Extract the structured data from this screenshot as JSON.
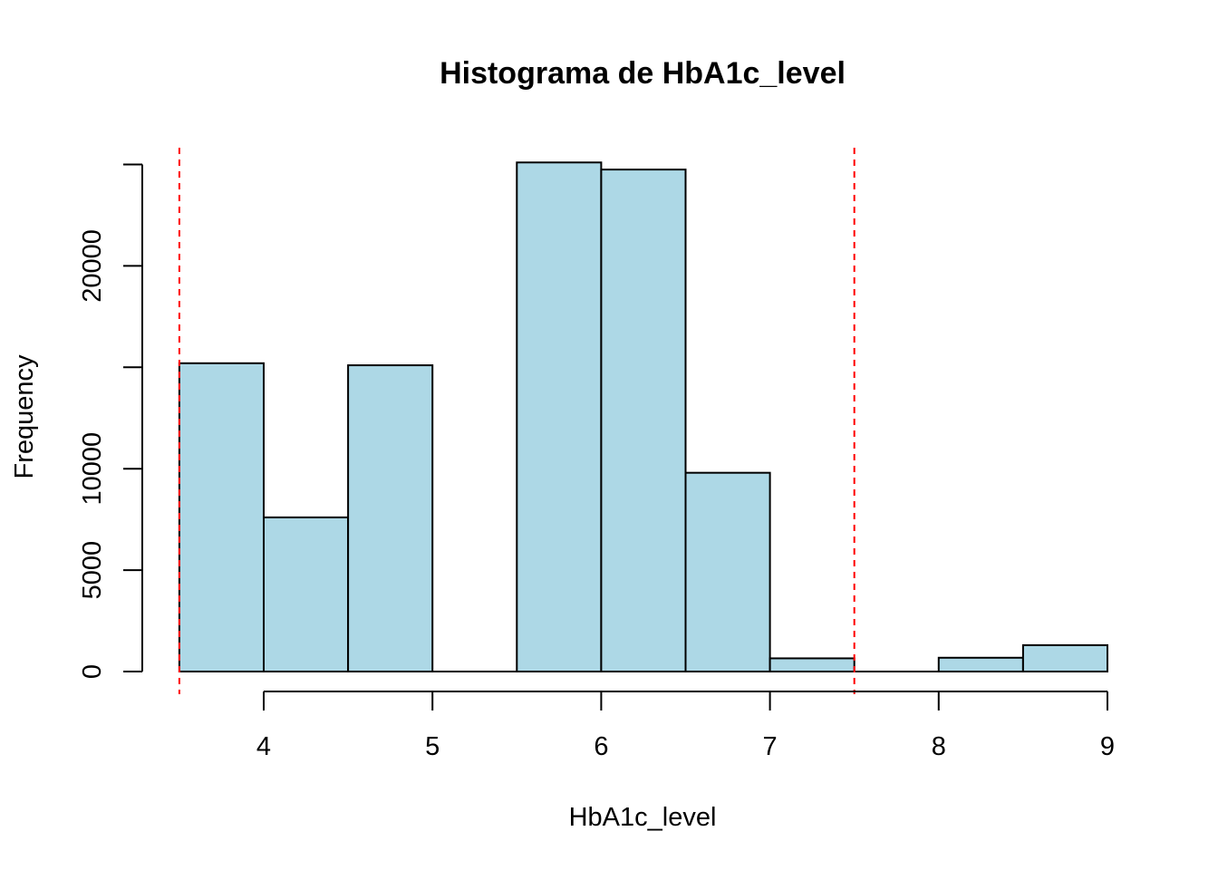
{
  "chart_data": {
    "type": "histogram",
    "title": "Histograma de HbA1c_level",
    "xlabel": "HbA1c_level",
    "ylabel": "Frequency",
    "bins": [
      {
        "x0": 3.5,
        "x1": 4.0,
        "count": 15200
      },
      {
        "x0": 4.0,
        "x1": 4.5,
        "count": 7600
      },
      {
        "x0": 4.5,
        "x1": 5.0,
        "count": 15100
      },
      {
        "x0": 5.0,
        "x1": 5.5,
        "count": 0
      },
      {
        "x0": 5.5,
        "x1": 6.0,
        "count": 25100
      },
      {
        "x0": 6.0,
        "x1": 6.5,
        "count": 24750
      },
      {
        "x0": 6.5,
        "x1": 7.0,
        "count": 9800
      },
      {
        "x0": 7.0,
        "x1": 7.5,
        "count": 650
      },
      {
        "x0": 7.5,
        "x1": 8.0,
        "count": 0
      },
      {
        "x0": 8.0,
        "x1": 8.5,
        "count": 680
      },
      {
        "x0": 8.5,
        "x1": 9.0,
        "count": 1300
      }
    ],
    "x_ticks": [
      "4",
      "5",
      "6",
      "7",
      "8",
      "9"
    ],
    "y_ticks": [
      0,
      5000,
      10000,
      15000,
      20000,
      25000
    ],
    "y_tick_labels": [
      "0",
      "5000",
      "10000",
      "",
      "20000",
      ""
    ],
    "reference_lines": [
      3.5,
      7.5
    ],
    "colors": {
      "bar_fill": "#add8e6",
      "bar_stroke": "#000000",
      "reference_line": "#ff0000"
    }
  }
}
